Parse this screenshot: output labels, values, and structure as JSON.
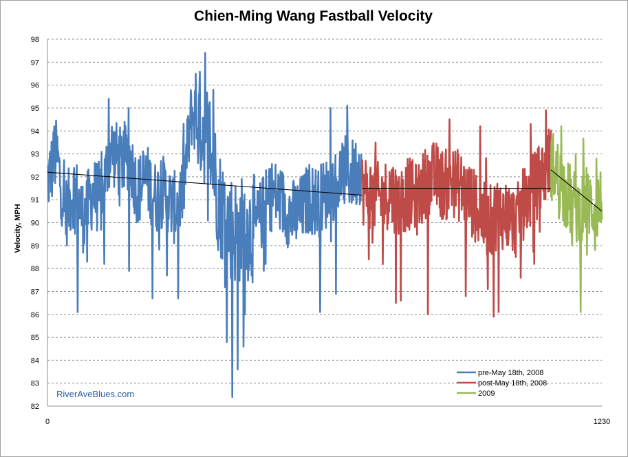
{
  "chart_data": {
    "type": "line",
    "title": "Chien-Ming Wang Fastball Velocity",
    "ylabel": "Velocity, MPH",
    "xlabel": "",
    "xlim": [
      0,
      1230
    ],
    "ylim": [
      82,
      98
    ],
    "x_ticks": [
      "0",
      "1230"
    ],
    "y_ticks": [
      82,
      83,
      84,
      85,
      86,
      87,
      88,
      89,
      90,
      91,
      92,
      93,
      94,
      95,
      96,
      97,
      98
    ],
    "grid": "horizontal dashed",
    "legend_position": "bottom-right",
    "series": [
      {
        "name": "pre-May 18th, 2008",
        "color": "#4a7ebb",
        "x_range": [
          0,
          698
        ],
        "anchors": [
          [
            0,
            91.8
          ],
          [
            20,
            93.0
          ],
          [
            40,
            90.4
          ],
          [
            60,
            91.5
          ],
          [
            80,
            90.2
          ],
          [
            100,
            91.3
          ],
          [
            120,
            91.0
          ],
          [
            140,
            93.3
          ],
          [
            160,
            92.6
          ],
          [
            180,
            93.0
          ],
          [
            200,
            91.4
          ],
          [
            220,
            91.9
          ],
          [
            240,
            91.1
          ],
          [
            260,
            91.4
          ],
          [
            280,
            90.6
          ],
          [
            300,
            91.3
          ],
          [
            320,
            94.8
          ],
          [
            340,
            94.3
          ],
          [
            360,
            93.6
          ],
          [
            380,
            91.0
          ],
          [
            400,
            90.0
          ],
          [
            420,
            89.6
          ],
          [
            440,
            89.8
          ],
          [
            460,
            89.7
          ],
          [
            480,
            90.6
          ],
          [
            500,
            91.3
          ],
          [
            520,
            90.9
          ],
          [
            540,
            90.3
          ],
          [
            560,
            90.4
          ],
          [
            580,
            91.1
          ],
          [
            600,
            90.9
          ],
          [
            620,
            91.3
          ],
          [
            640,
            91.8
          ],
          [
            660,
            92.2
          ],
          [
            680,
            92.1
          ],
          [
            698,
            92.5
          ]
        ],
        "dips": [
          [
            67,
            86.1
          ],
          [
            88,
            88.3
          ],
          [
            126,
            88.2
          ],
          [
            181,
            87.9
          ],
          [
            233,
            86.7
          ],
          [
            265,
            87.7
          ],
          [
            290,
            86.7
          ],
          [
            410,
            82.4
          ],
          [
            422,
            83.6
          ],
          [
            435,
            84.6
          ],
          [
            398,
            84.8
          ],
          [
            438,
            86.0
          ],
          [
            480,
            87.9
          ],
          [
            605,
            86.1
          ],
          [
            640,
            86.9
          ]
        ],
        "peaks": [
          [
            15,
            94.2
          ],
          [
            136,
            95.4
          ],
          [
            180,
            95.0
          ],
          [
            329,
            96.5
          ],
          [
            350,
            97.4
          ],
          [
            368,
            95.8
          ],
          [
            628,
            95.0
          ],
          [
            665,
            95.1
          ]
        ]
      },
      {
        "name": "post-May 18th, 2008",
        "color": "#be4b48",
        "x_range": [
          698,
          1117
        ],
        "anchors": [
          [
            698,
            91.5
          ],
          [
            720,
            91.2
          ],
          [
            740,
            91.0
          ],
          [
            760,
            91.4
          ],
          [
            780,
            90.9
          ],
          [
            800,
            91.3
          ],
          [
            820,
            91.0
          ],
          [
            840,
            91.8
          ],
          [
            860,
            92.0
          ],
          [
            880,
            91.6
          ],
          [
            900,
            91.8
          ],
          [
            920,
            91.5
          ],
          [
            940,
            91.0
          ],
          [
            960,
            90.3
          ],
          [
            980,
            90.0
          ],
          [
            1000,
            90.5
          ],
          [
            1020,
            90.3
          ],
          [
            1040,
            90.0
          ],
          [
            1060,
            91.0
          ],
          [
            1080,
            91.5
          ],
          [
            1100,
            92.2
          ],
          [
            1117,
            92.8
          ]
        ],
        "dips": [
          [
            713,
            88.4
          ],
          [
            773,
            86.5
          ],
          [
            784,
            86.6
          ],
          [
            844,
            86.0
          ],
          [
            928,
            86.8
          ],
          [
            977,
            87.1
          ],
          [
            990,
            85.9
          ],
          [
            1001,
            86.1
          ],
          [
            1050,
            87.6
          ],
          [
            1080,
            88.2
          ]
        ],
        "peaks": [
          [
            728,
            93.5
          ],
          [
            892,
            94.5
          ],
          [
            960,
            94.2
          ],
          [
            1072,
            94.3
          ],
          [
            1106,
            94.9
          ]
        ]
      },
      {
        "name": "2009",
        "color": "#98b954",
        "x_range": [
          1117,
          1230
        ],
        "anchors": [
          [
            1117,
            92.6
          ],
          [
            1135,
            92.0
          ],
          [
            1150,
            91.3
          ],
          [
            1165,
            90.8
          ],
          [
            1180,
            90.5
          ],
          [
            1195,
            91.0
          ],
          [
            1210,
            90.7
          ],
          [
            1230,
            90.9
          ]
        ],
        "dips": [
          [
            1164,
            89.0
          ],
          [
            1183,
            86.1
          ],
          [
            1197,
            88.6
          ],
          [
            1215,
            88.8
          ]
        ],
        "peaks": [
          [
            1140,
            94.2
          ],
          [
            1172,
            93.0
          ],
          [
            1218,
            92.8
          ]
        ]
      }
    ],
    "trendlines": [
      {
        "x": [
          0,
          698
        ],
        "y": [
          92.2,
          91.2
        ],
        "color": "#000000"
      },
      {
        "x": [
          698,
          1117
        ],
        "y": [
          91.5,
          91.5
        ],
        "color": "#000000"
      },
      {
        "x": [
          1117,
          1230
        ],
        "y": [
          92.3,
          90.5
        ],
        "color": "#000000"
      }
    ]
  },
  "watermark": "RiverAveBlues.com"
}
